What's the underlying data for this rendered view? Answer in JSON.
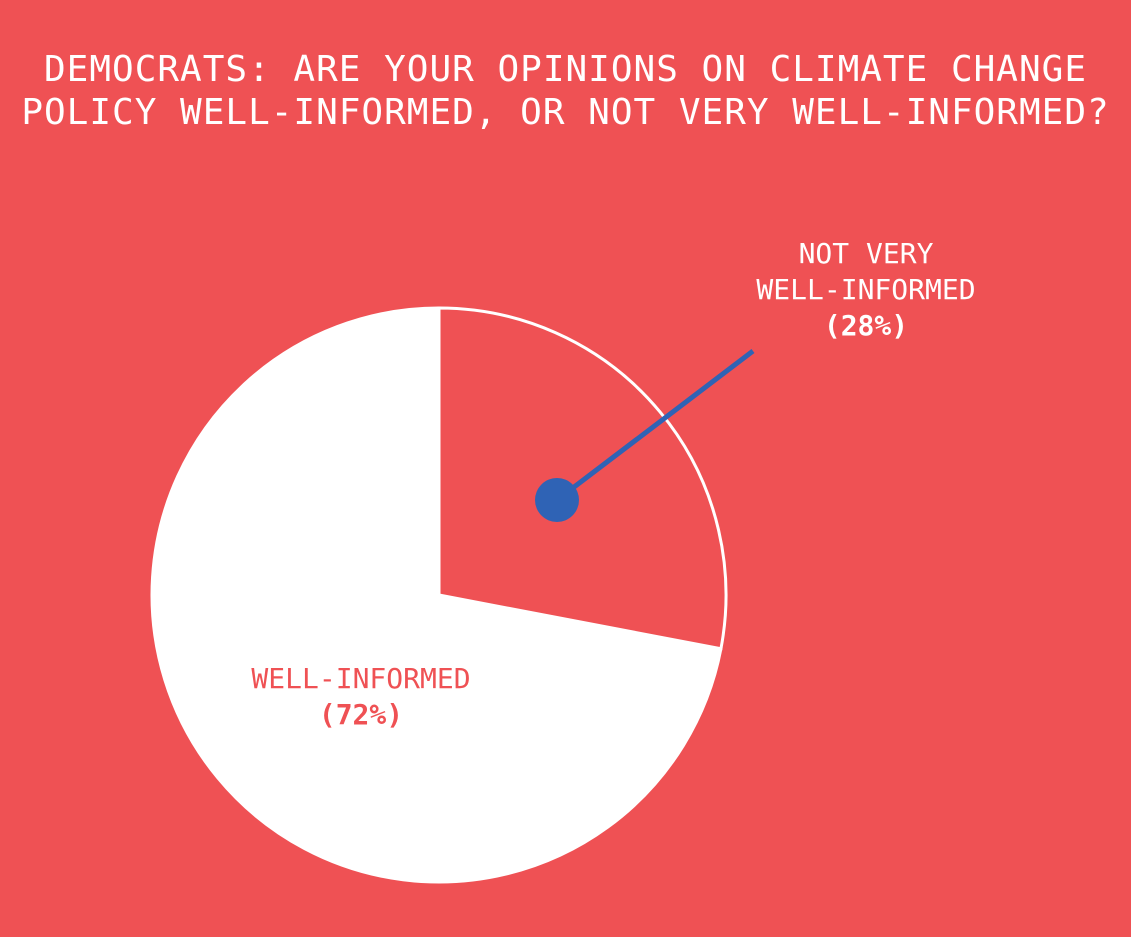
{
  "title": "DEMOCRATS: ARE YOUR OPINIONS ON CLIMATE CHANGE\nPOLICY WELL-INFORMED, OR NOT VERY WELL-INFORMED?",
  "colors": {
    "background": "#ef5154",
    "well_informed_slice": "#ffffff",
    "not_very_slice": "#ef5154",
    "slice_outline": "#ffffff",
    "callout": "#2f63b5"
  },
  "chart_data": {
    "type": "pie",
    "title": "DEMOCRATS: ARE YOUR OPINIONS ON CLIMATE CHANGE POLICY WELL-INFORMED, OR NOT VERY WELL-INFORMED?",
    "slices": [
      {
        "label": "NOT VERY WELL-INFORMED",
        "label_lines": [
          "NOT VERY",
          "WELL-INFORMED"
        ],
        "value": 28,
        "value_label": "(28%)"
      },
      {
        "label": "WELL-INFORMED",
        "label_lines": [
          "WELL-INFORMED"
        ],
        "value": 72,
        "value_label": "(72%)"
      }
    ],
    "start": "top",
    "direction": "clockwise"
  }
}
